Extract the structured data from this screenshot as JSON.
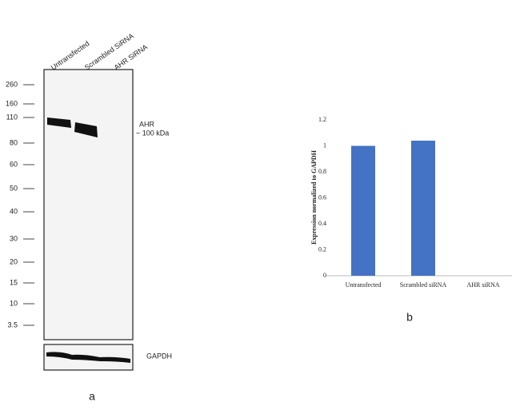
{
  "blot": {
    "lanes": [
      "Untransfected",
      "Scrambled SiRNA",
      "AHR SiRNA"
    ],
    "markers": [
      260,
      160,
      110,
      80,
      60,
      50,
      40,
      30,
      20,
      15,
      10,
      3.5
    ],
    "band_label": "AHR",
    "band_size": "~ 100 kDa",
    "loading_control": "GAPDH",
    "panel": "a"
  },
  "chart_data": {
    "type": "bar",
    "panel": "b",
    "y_label": "Expression normalized to GAPDH",
    "categories": [
      "Untransfected",
      "Scrambled siRNA",
      "AHR siRNA"
    ],
    "values": [
      1.0,
      1.04,
      0
    ],
    "color": "#4472c4",
    "ylim": [
      0,
      1.2
    ],
    "yticks": [
      0,
      0.2,
      0.4,
      0.6,
      0.8,
      1,
      1.2
    ],
    "grid": false
  }
}
